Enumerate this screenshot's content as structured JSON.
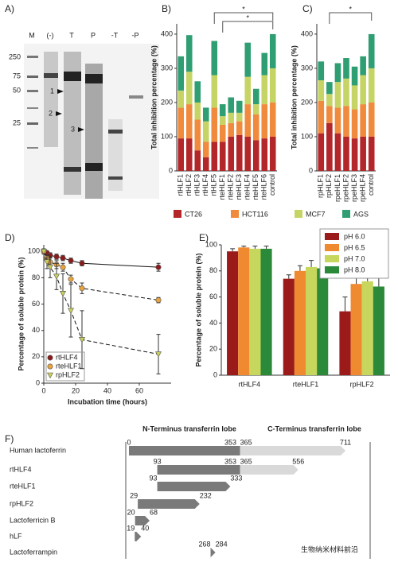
{
  "panel_labels": [
    "A)",
    "B)",
    "C)",
    "D)",
    "E)",
    "F)"
  ],
  "gel": {
    "lanes": [
      "M",
      "(-)",
      "T",
      "P",
      "-T",
      "-P"
    ],
    "markers": [
      "250",
      "75",
      "50",
      "25"
    ],
    "arrows": [
      "1",
      "2",
      "3"
    ]
  },
  "chart_data": [
    {
      "type": "stacked_bar",
      "ylabel": "Total inhibition percentage (%)",
      "categories": [
        "rtHLF1",
        "rtHLF2",
        "rtHLF3",
        "rtHLF4",
        "rtHLF5",
        "rteHLF1",
        "rteHLF2",
        "rteHLF3",
        "rteHLF4",
        "rteHLF5",
        "rteHLF6",
        "control"
      ],
      "series": [
        {
          "name": "CT26",
          "color": "#b3262a",
          "values": [
            95,
            95,
            60,
            40,
            85,
            85,
            100,
            105,
            100,
            90,
            95,
            100
          ]
        },
        {
          "name": "HCT116",
          "color": "#f08a3c",
          "values": [
            90,
            100,
            90,
            45,
            100,
            50,
            40,
            40,
            95,
            75,
            100,
            100
          ]
        },
        {
          "name": "MCF7",
          "color": "#c6d465",
          "values": [
            50,
            95,
            50,
            60,
            95,
            25,
            30,
            25,
            80,
            30,
            85,
            100
          ]
        },
        {
          "name": "AGS",
          "color": "#2f9e72",
          "values": [
            100,
            107,
            62,
            40,
            100,
            35,
            45,
            35,
            100,
            45,
            65,
            100
          ]
        }
      ],
      "ylim": [
        0,
        430
      ],
      "yticks": [
        0,
        100,
        200,
        300,
        400
      ],
      "annotations": [
        "*",
        "*"
      ]
    },
    {
      "type": "stacked_bar",
      "ylabel": "Total inhibition percentage (%)",
      "categories": [
        "rpHLF1",
        "rpHLF2",
        "rpeHLF1",
        "rpeHLF2",
        "rpeHLF3",
        "rpeHLF4",
        "control"
      ],
      "series": [
        {
          "color": "#b3262a",
          "values": [
            110,
            140,
            110,
            100,
            95,
            100,
            100
          ]
        },
        {
          "color": "#f08a3c",
          "values": [
            95,
            50,
            75,
            90,
            85,
            95,
            100
          ]
        },
        {
          "color": "#c6d465",
          "values": [
            60,
            35,
            75,
            80,
            70,
            85,
            100
          ]
        },
        {
          "color": "#2f9e72",
          "values": [
            55,
            35,
            55,
            60,
            55,
            55,
            100
          ]
        }
      ],
      "ylim": [
        0,
        430
      ],
      "yticks": [
        0,
        100,
        200,
        300,
        400
      ],
      "annotations": [
        "*"
      ]
    },
    {
      "type": "line",
      "xlabel": "Incubation time (hours)",
      "ylabel": "Percentage of soluble protein (%)",
      "x": [
        0,
        2,
        4,
        8,
        12,
        17,
        24,
        72
      ],
      "series": [
        {
          "name": "rtHLF4",
          "color": "#8b1a1a",
          "marker": "circle",
          "line": "solid",
          "values": [
            100,
            99,
            97,
            96,
            95,
            93,
            91,
            88
          ],
          "errors": [
            1,
            1,
            2,
            2,
            2,
            2,
            2,
            3
          ]
        },
        {
          "name": "rteHLF1",
          "color": "#e8a33c",
          "marker": "circle",
          "line": "dashed",
          "values": [
            100,
            95,
            92,
            90,
            88,
            79,
            72,
            63
          ],
          "errors": [
            1,
            2,
            3,
            3,
            3,
            3,
            4,
            2
          ]
        },
        {
          "name": "rpHLF2",
          "color": "#c9cf5a",
          "marker": "triangle",
          "line": "dashed",
          "values": [
            100,
            92,
            88,
            81,
            68,
            55,
            33,
            22
          ],
          "errors": [
            2,
            5,
            8,
            10,
            15,
            20,
            22,
            15
          ]
        }
      ],
      "xlim": [
        0,
        80
      ],
      "xticks": [
        0,
        20,
        40,
        60
      ],
      "ylim": [
        0,
        105
      ],
      "yticks": [
        0,
        20,
        40,
        60,
        80,
        100
      ],
      "legend": "lower left"
    },
    {
      "type": "grouped_bar",
      "ylabel": "Percentage of soluble protein (%)",
      "categories": [
        "rtHLF4",
        "rteHLF1",
        "rpHLF2"
      ],
      "series": [
        {
          "name": "pH 6.0",
          "color": "#9b1b1b",
          "values": [
            95,
            74,
            49
          ],
          "errors": [
            2,
            3,
            11
          ]
        },
        {
          "name": "pH 6.5",
          "color": "#f08a30",
          "values": [
            98,
            80,
            70
          ],
          "errors": [
            1,
            4,
            12
          ]
        },
        {
          "name": "pH 7.0",
          "color": "#c7d65c",
          "values": [
            97,
            83,
            72
          ],
          "errors": [
            2,
            5,
            14
          ]
        },
        {
          "name": "pH 8.0",
          "color": "#2a8a3a",
          "values": [
            97,
            82,
            68
          ],
          "errors": [
            2,
            5,
            10
          ]
        }
      ],
      "ylim": [
        0,
        100
      ],
      "yticks": [
        0,
        20,
        40,
        60,
        80,
        100
      ],
      "legend": "upper right"
    }
  ],
  "diagram": {
    "headers": [
      "N-Terminus transferrin lobe",
      "C-Terminus transferrin lobe"
    ],
    "rows": [
      {
        "label": "Human lactoferrin",
        "positions": [
          0,
          353,
          365,
          711
        ]
      },
      {
        "label": "rtHLF4",
        "positions": [
          93,
          353,
          365,
          556
        ]
      },
      {
        "label": "rteHLF1",
        "positions": [
          93,
          333
        ]
      },
      {
        "label": "rpHLF2",
        "positions": [
          29,
          232
        ]
      },
      {
        "label": "Lactoferricin B",
        "positions": [
          20,
          68
        ]
      },
      {
        "label": "hLF",
        "positions": [
          19,
          40
        ]
      },
      {
        "label": "Lactoferrampin",
        "positions": [
          268,
          284
        ]
      }
    ]
  },
  "watermark": "生物纳米材料前沿"
}
